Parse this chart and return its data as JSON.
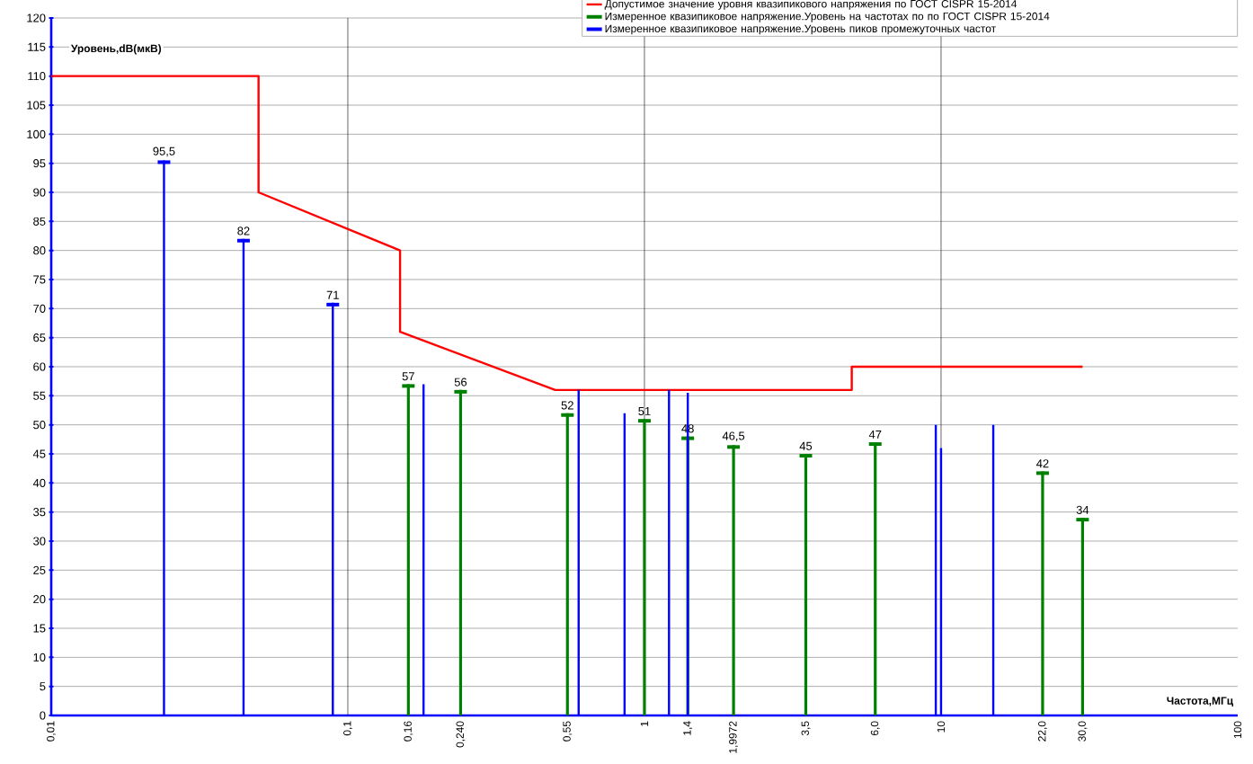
{
  "chart_data": {
    "type": "bar",
    "xlabel": "Частота,МГц",
    "ylabel": "Уровень,dB(мкВ)",
    "log": "x",
    "grid": true,
    "legend": "top right",
    "xlim": [
      0.01,
      100
    ],
    "ylim": [
      0,
      120
    ],
    "xticks": [
      {
        "value": 0.01,
        "label": "0,01"
      },
      {
        "value": 0.1,
        "label": "0,1"
      },
      {
        "value": 0.16,
        "label": "0,16"
      },
      {
        "value": 0.24,
        "label": "0,240"
      },
      {
        "value": 0.55,
        "label": "0,55"
      },
      {
        "value": 1,
        "label": "1"
      },
      {
        "value": 1.4,
        "label": "1,4"
      },
      {
        "value": 1.9972,
        "label": "1,9972"
      },
      {
        "value": 3.5,
        "label": "3,5"
      },
      {
        "value": 6,
        "label": "6,0"
      },
      {
        "value": 10,
        "label": "10"
      },
      {
        "value": 22,
        "label": "22,0"
      },
      {
        "value": 30,
        "label": "30,0"
      },
      {
        "value": 100,
        "label": "100"
      }
    ],
    "yticks": [
      0,
      5,
      10,
      15,
      20,
      25,
      30,
      35,
      40,
      45,
      50,
      55,
      60,
      65,
      70,
      75,
      80,
      85,
      90,
      95,
      100,
      105,
      110,
      115,
      120
    ],
    "series": [
      {
        "type": "line",
        "name": "Допустимое значение уровня квазипикового напряжения по ГОСТ CISPR 15-2014",
        "color": "#ff0000",
        "x": [
          0.01,
          0.05,
          0.05,
          0.15,
          0.15,
          0.5,
          5,
          5,
          30
        ],
        "values": [
          110,
          110,
          90,
          80,
          66,
          56,
          56,
          60,
          60
        ]
      },
      {
        "name": "Измеренное квазипиковое напряжение.Уровень на частотах по по ГОСТ CISPR 15-2014",
        "color": "#008000",
        "x": [
          0.16,
          0.24,
          0.55,
          1,
          1.4,
          1.9972,
          3.5,
          6,
          22,
          30
        ],
        "values": [
          57,
          56,
          52,
          51,
          48,
          46.5,
          45,
          47,
          42,
          34
        ],
        "value_labels": [
          "57",
          "56",
          "52",
          "51",
          "48",
          "46,5",
          "45",
          "47",
          "42",
          "34"
        ]
      },
      {
        "name": "Измеренное квазипиковое напряжение.Уровень пиков промежуточных частот",
        "color": "#0000ff",
        "x": [
          0.024,
          0.0445,
          0.089
        ],
        "values": [
          95.5,
          82,
          71
        ],
        "value_labels": [
          "95,5",
          "82",
          "71"
        ]
      },
      {
        "color": "#0000ff",
        "marker": "none",
        "x": [
          0.18,
          0.6,
          0.857,
          1.21,
          1.4,
          9.6,
          10,
          15
        ],
        "values": [
          57,
          56,
          52,
          56,
          55.5,
          50,
          46,
          50
        ]
      }
    ]
  }
}
